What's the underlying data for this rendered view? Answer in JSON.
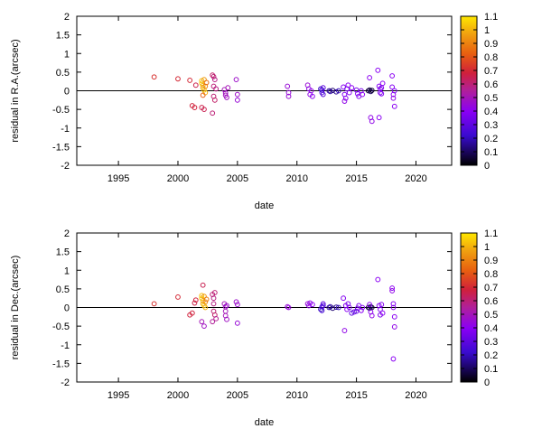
{
  "chart_data": [
    {
      "type": "scatter",
      "xlabel": "date",
      "ylabel": "residual in R.A.(arcsec)",
      "xlim": [
        1991.5,
        2023
      ],
      "ylim": [
        -2,
        2
      ],
      "x_ticks": [
        1995,
        2000,
        2005,
        2010,
        2015,
        2020
      ],
      "y_ticks": [
        -2,
        -1.5,
        -1,
        -0.5,
        0,
        0.5,
        1,
        1.5,
        2
      ],
      "zero_line": true,
      "grid": false,
      "colorbar": {
        "min": 0,
        "max": 1.1,
        "ticks": [
          0,
          0.1,
          0.2,
          0.3,
          0.4,
          0.5,
          0.6,
          0.7,
          0.8,
          0.9,
          1,
          1.1
        ],
        "position": "right"
      },
      "points": [
        [
          1998.0,
          0.37,
          0.72
        ],
        [
          2000.0,
          0.32,
          0.7
        ],
        [
          2001.0,
          0.28,
          0.7
        ],
        [
          2001.2,
          -0.4,
          0.68
        ],
        [
          2001.4,
          -0.45,
          0.68
        ],
        [
          2001.5,
          0.15,
          0.66
        ],
        [
          2002.0,
          0.27,
          1.02
        ],
        [
          2002.0,
          0.2,
          1.04
        ],
        [
          2002.1,
          0.14,
          1.0
        ],
        [
          2002.1,
          0.08,
          0.98
        ],
        [
          2002.2,
          0.3,
          0.95
        ],
        [
          2002.2,
          0.02,
          1.05
        ],
        [
          2002.3,
          -0.05,
          1.0
        ],
        [
          2002.3,
          0.12,
          0.9
        ],
        [
          2002.4,
          0.22,
          0.85
        ],
        [
          2002.1,
          -0.12,
          0.82
        ],
        [
          2002.2,
          -0.5,
          0.65
        ],
        [
          2002.0,
          -0.45,
          0.66
        ],
        [
          2002.9,
          0.42,
          0.62
        ],
        [
          2003.0,
          0.38,
          0.6
        ],
        [
          2003.1,
          0.3,
          0.58
        ],
        [
          2003.0,
          0.12,
          0.6
        ],
        [
          2003.0,
          -0.15,
          0.6
        ],
        [
          2003.1,
          -0.25,
          0.62
        ],
        [
          2002.9,
          -0.6,
          0.6
        ],
        [
          2003.2,
          0.05,
          0.58
        ],
        [
          2003.9,
          0.03,
          0.5
        ],
        [
          2004.0,
          -0.06,
          0.48
        ],
        [
          2004.0,
          -0.12,
          0.5
        ],
        [
          2004.1,
          -0.18,
          0.48
        ],
        [
          2004.2,
          0.08,
          0.5
        ],
        [
          2004.9,
          0.3,
          0.47
        ],
        [
          2005.0,
          -0.1,
          0.47
        ],
        [
          2005.0,
          -0.25,
          0.45
        ],
        [
          2009.2,
          0.12,
          0.45
        ],
        [
          2009.3,
          -0.05,
          0.44
        ],
        [
          2009.3,
          -0.15,
          0.45
        ],
        [
          2010.9,
          0.15,
          0.45
        ],
        [
          2011.0,
          0.05,
          0.42
        ],
        [
          2011.1,
          -0.1,
          0.42
        ],
        [
          2011.3,
          -0.15,
          0.4
        ],
        [
          2011.2,
          0.0,
          0.42
        ],
        [
          2012.0,
          0.05,
          0.2
        ],
        [
          2012.1,
          0.02,
          0.22
        ],
        [
          2012.1,
          -0.05,
          0.25
        ],
        [
          2012.2,
          -0.1,
          0.28
        ],
        [
          2012.2,
          0.08,
          0.3
        ],
        [
          2012.7,
          0.0,
          0.15
        ],
        [
          2012.8,
          -0.02,
          0.18
        ],
        [
          2013.0,
          0.01,
          0.12
        ],
        [
          2013.3,
          -0.03,
          0.15
        ],
        [
          2013.5,
          0.0,
          0.2
        ],
        [
          2013.9,
          0.1,
          0.38
        ],
        [
          2014.0,
          -0.1,
          0.38
        ],
        [
          2014.1,
          -0.2,
          0.4
        ],
        [
          2014.0,
          -0.28,
          0.42
        ],
        [
          2014.2,
          0.05,
          0.35
        ],
        [
          2014.3,
          0.15,
          0.4
        ],
        [
          2014.4,
          -0.05,
          0.38
        ],
        [
          2014.6,
          0.08,
          0.4
        ],
        [
          2015.0,
          0.02,
          0.35
        ],
        [
          2015.1,
          -0.08,
          0.38
        ],
        [
          2015.2,
          -0.15,
          0.38
        ],
        [
          2015.4,
          0.0,
          0.36
        ],
        [
          2015.5,
          -0.1,
          0.4
        ],
        [
          2016.0,
          0.0,
          0.05
        ],
        [
          2016.1,
          0.02,
          0.08
        ],
        [
          2016.2,
          -0.02,
          0.1
        ],
        [
          2016.3,
          0.01,
          0.05
        ],
        [
          2016.1,
          0.35,
          0.4
        ],
        [
          2016.2,
          -0.72,
          0.42
        ],
        [
          2016.3,
          -0.82,
          0.42
        ],
        [
          2016.8,
          0.55,
          0.4
        ],
        [
          2016.9,
          0.12,
          0.38
        ],
        [
          2016.9,
          -0.72,
          0.4
        ],
        [
          2017.0,
          0.05,
          0.38
        ],
        [
          2017.0,
          -0.05,
          0.36
        ],
        [
          2017.1,
          0.08,
          0.38
        ],
        [
          2017.1,
          -0.08,
          0.38
        ],
        [
          2017.2,
          0.2,
          0.4
        ],
        [
          2018.0,
          0.4,
          0.4
        ],
        [
          2018.0,
          0.1,
          0.38
        ],
        [
          2018.1,
          -0.1,
          0.4
        ],
        [
          2018.1,
          -0.2,
          0.42
        ],
        [
          2018.2,
          -0.42,
          0.4
        ],
        [
          2018.2,
          0.0,
          0.38
        ]
      ]
    },
    {
      "type": "scatter",
      "xlabel": "date",
      "ylabel": "residual in Dec.(arcsec)",
      "xlim": [
        1991.5,
        2023
      ],
      "ylim": [
        -2,
        2
      ],
      "x_ticks": [
        1995,
        2000,
        2005,
        2010,
        2015,
        2020
      ],
      "y_ticks": [
        -2,
        -1.5,
        -1,
        -0.5,
        0,
        0.5,
        1,
        1.5,
        2
      ],
      "zero_line": true,
      "grid": false,
      "colorbar": {
        "min": 0,
        "max": 1.1,
        "ticks": [
          0,
          0.1,
          0.2,
          0.3,
          0.4,
          0.5,
          0.6,
          0.7,
          0.8,
          0.9,
          1,
          1.1
        ],
        "position": "right"
      },
      "points": [
        [
          1998.0,
          0.1,
          0.72
        ],
        [
          2000.0,
          0.28,
          0.7
        ],
        [
          2001.0,
          -0.2,
          0.68
        ],
        [
          2001.2,
          -0.15,
          0.68
        ],
        [
          2001.4,
          0.12,
          0.66
        ],
        [
          2001.5,
          0.2,
          0.68
        ],
        [
          2002.0,
          0.32,
          1.02
        ],
        [
          2002.0,
          0.25,
          1.04
        ],
        [
          2002.1,
          0.18,
          1.0
        ],
        [
          2002.1,
          0.1,
          0.98
        ],
        [
          2002.2,
          0.3,
          0.95
        ],
        [
          2002.2,
          0.05,
          1.05
        ],
        [
          2002.3,
          0.0,
          1.0
        ],
        [
          2002.3,
          0.15,
          0.92
        ],
        [
          2002.4,
          0.22,
          0.88
        ],
        [
          2002.1,
          0.6,
          0.65
        ],
        [
          2002.0,
          -0.38,
          0.5
        ],
        [
          2002.2,
          -0.5,
          0.48
        ],
        [
          2002.9,
          0.35,
          0.6
        ],
        [
          2003.0,
          0.25,
          0.58
        ],
        [
          2003.1,
          0.4,
          0.6
        ],
        [
          2003.0,
          0.1,
          0.58
        ],
        [
          2003.0,
          -0.1,
          0.6
        ],
        [
          2003.1,
          -0.2,
          0.62
        ],
        [
          2002.9,
          -0.38,
          0.55
        ],
        [
          2003.2,
          -0.3,
          0.56
        ],
        [
          2003.9,
          0.1,
          0.5
        ],
        [
          2004.0,
          0.02,
          0.48
        ],
        [
          2004.0,
          -0.1,
          0.5
        ],
        [
          2004.1,
          0.05,
          0.46
        ],
        [
          2004.0,
          -0.22,
          0.5
        ],
        [
          2004.1,
          -0.32,
          0.48
        ],
        [
          2004.9,
          0.15,
          0.47
        ],
        [
          2005.0,
          0.08,
          0.46
        ],
        [
          2005.0,
          -0.42,
          0.45
        ],
        [
          2009.2,
          0.02,
          0.45
        ],
        [
          2009.3,
          0.0,
          0.44
        ],
        [
          2010.9,
          0.1,
          0.45
        ],
        [
          2011.0,
          0.05,
          0.42
        ],
        [
          2011.1,
          0.12,
          0.42
        ],
        [
          2011.3,
          0.08,
          0.4
        ],
        [
          2012.0,
          -0.05,
          0.2
        ],
        [
          2012.1,
          0.02,
          0.22
        ],
        [
          2012.1,
          -0.08,
          0.25
        ],
        [
          2012.2,
          0.1,
          0.3
        ],
        [
          2012.2,
          0.05,
          0.28
        ],
        [
          2012.7,
          0.0,
          0.15
        ],
        [
          2012.8,
          0.02,
          0.18
        ],
        [
          2013.0,
          -0.02,
          0.12
        ],
        [
          2013.3,
          0.01,
          0.15
        ],
        [
          2013.5,
          0.0,
          0.2
        ],
        [
          2013.9,
          0.25,
          0.38
        ],
        [
          2014.0,
          -0.62,
          0.42
        ],
        [
          2014.1,
          0.05,
          0.38
        ],
        [
          2014.2,
          -0.05,
          0.4
        ],
        [
          2014.3,
          0.1,
          0.36
        ],
        [
          2014.4,
          0.0,
          0.38
        ],
        [
          2014.6,
          -0.15,
          0.3
        ],
        [
          2014.8,
          -0.12,
          0.3
        ],
        [
          2015.0,
          -0.1,
          0.32
        ],
        [
          2015.1,
          -0.02,
          0.35
        ],
        [
          2015.2,
          0.05,
          0.36
        ],
        [
          2015.4,
          -0.08,
          0.4
        ],
        [
          2015.5,
          0.0,
          0.38
        ],
        [
          2016.0,
          0.0,
          0.05
        ],
        [
          2016.1,
          -0.02,
          0.08
        ],
        [
          2016.2,
          0.02,
          0.1
        ],
        [
          2016.3,
          0.0,
          0.05
        ],
        [
          2016.1,
          0.08,
          0.4
        ],
        [
          2016.2,
          -0.12,
          0.4
        ],
        [
          2016.3,
          -0.22,
          0.42
        ],
        [
          2016.8,
          0.75,
          0.4
        ],
        [
          2016.9,
          0.05,
          0.38
        ],
        [
          2017.0,
          -0.05,
          0.38
        ],
        [
          2017.0,
          -0.2,
          0.36
        ],
        [
          2017.1,
          0.08,
          0.38
        ],
        [
          2017.2,
          -0.15,
          0.4
        ],
        [
          2018.0,
          0.52,
          0.4
        ],
        [
          2018.0,
          0.45,
          0.42
        ],
        [
          2018.1,
          0.1,
          0.38
        ],
        [
          2018.1,
          0.0,
          0.4
        ],
        [
          2018.2,
          -0.25,
          0.4
        ],
        [
          2018.2,
          -0.52,
          0.42
        ],
        [
          2018.1,
          -1.38,
          0.4
        ]
      ]
    }
  ]
}
